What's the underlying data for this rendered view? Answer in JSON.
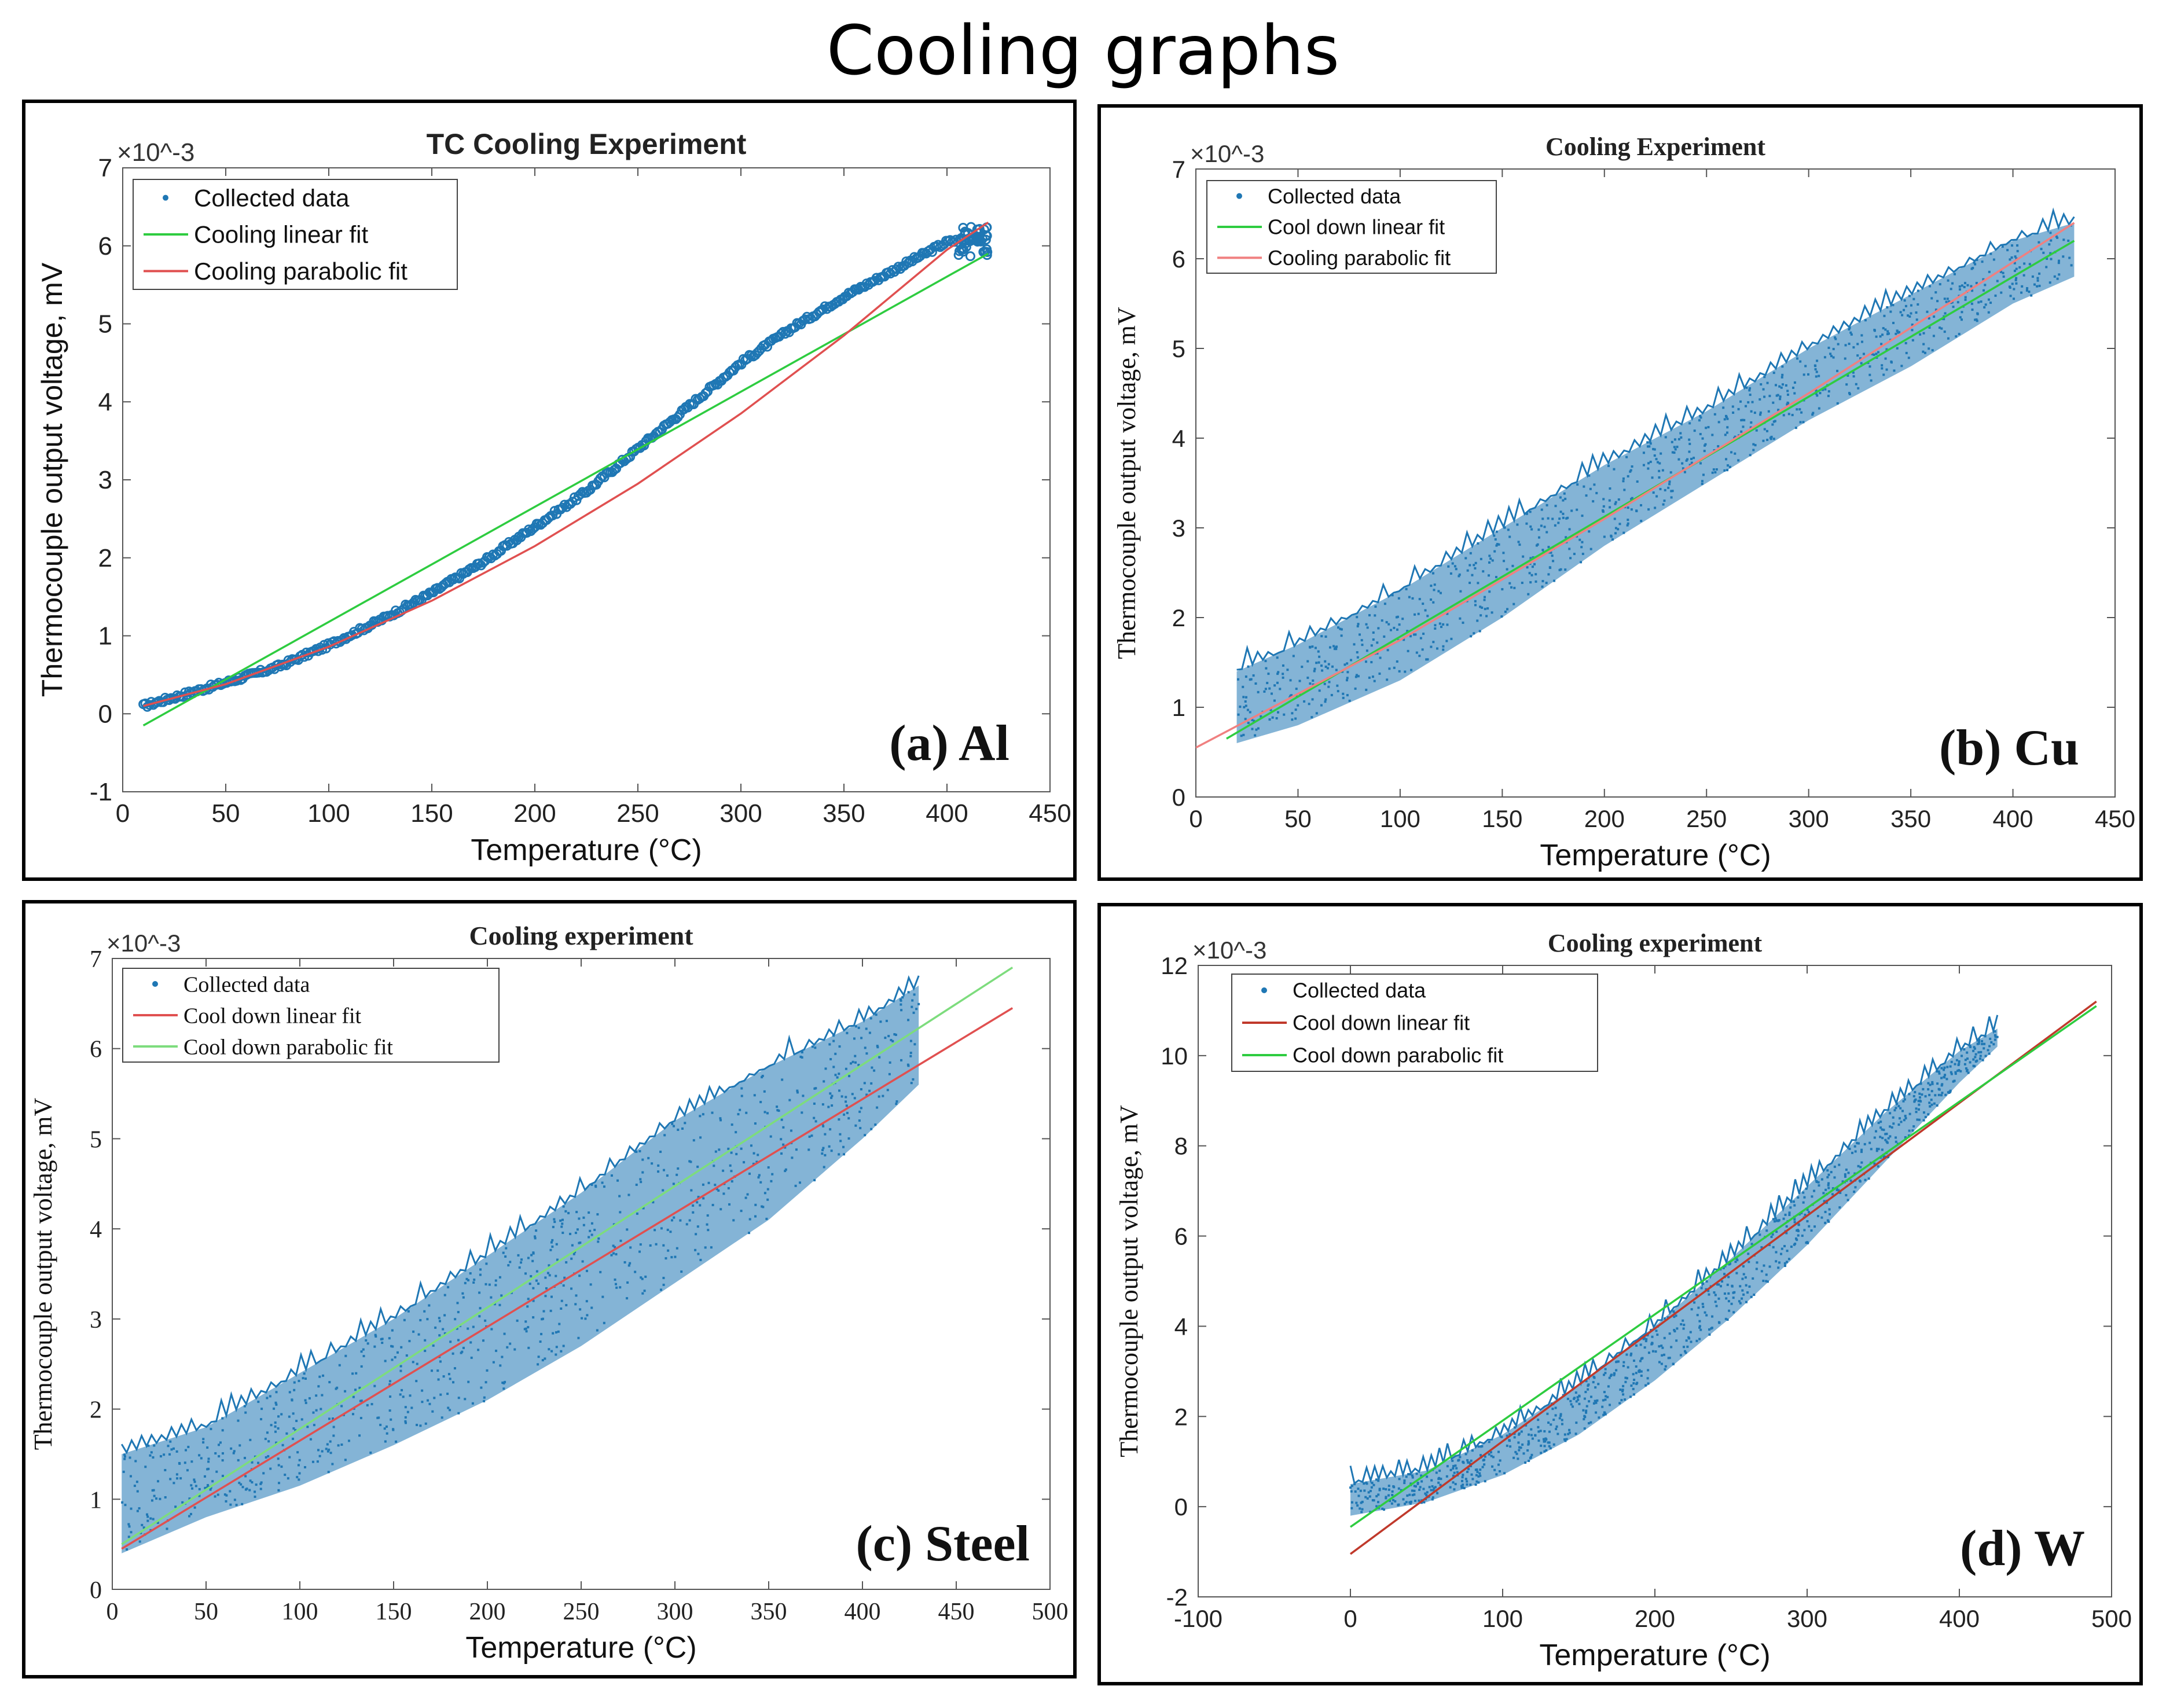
{
  "page_title": "Cooling graphs",
  "colors": {
    "data": "#1f77b4",
    "green": "#2ecc40",
    "red": "#e05050"
  },
  "chart_data": [
    {
      "id": "a",
      "type": "scatter",
      "title": "TC Cooling Experiment",
      "panel_label": "(a) Al",
      "xlabel": "Temperature (°C)",
      "ylabel": "Thermocouple output voltage, mV",
      "y_exponent": "×10^-3",
      "xlim": [
        0,
        450
      ],
      "ylim": [
        -1,
        7
      ],
      "xticks": [
        "0",
        "50",
        "100",
        "150",
        "200",
        "250",
        "300",
        "350",
        "400",
        "450"
      ],
      "yticks": [
        "-1",
        "0",
        "1",
        "2",
        "3",
        "4",
        "5",
        "6",
        "7"
      ],
      "legend": [
        "Collected data",
        "Cooling linear fit",
        "Cooling parabolic fit"
      ],
      "series": [
        {
          "name": "Collected data",
          "kind": "data",
          "color": "#1f77b4",
          "x": [
            10,
            30,
            50,
            75,
            100,
            125,
            150,
            175,
            200,
            225,
            250,
            275,
            300,
            325,
            350,
            375,
            400,
            415
          ],
          "y": [
            0.1,
            0.25,
            0.4,
            0.6,
            0.88,
            1.2,
            1.55,
            1.95,
            2.4,
            2.85,
            3.4,
            3.95,
            4.5,
            4.95,
            5.35,
            5.7,
            6.05,
            6.1
          ]
        },
        {
          "name": "Cooling linear fit",
          "kind": "line",
          "color": "#2ecc40",
          "x": [
            10,
            420
          ],
          "y": [
            -0.15,
            5.9
          ]
        },
        {
          "name": "Cooling parabolic fit",
          "kind": "line",
          "color": "#e05050",
          "x": [
            10,
            50,
            100,
            150,
            200,
            250,
            300,
            350,
            400,
            420
          ],
          "y": [
            0.1,
            0.38,
            0.86,
            1.45,
            2.15,
            2.95,
            3.85,
            4.85,
            5.95,
            6.3
          ]
        }
      ]
    },
    {
      "id": "b",
      "type": "scatter",
      "title": "Cooling Experiment",
      "panel_label": "(b) Cu",
      "xlabel": "Temperature (°C)",
      "ylabel": "Thermocouple output voltage, mV",
      "y_exponent": "×10^-3",
      "xlim": [
        0,
        450
      ],
      "ylim": [
        0,
        7
      ],
      "xticks": [
        "0",
        "50",
        "100",
        "150",
        "200",
        "250",
        "300",
        "350",
        "400",
        "450"
      ],
      "yticks": [
        "0",
        "1",
        "2",
        "3",
        "4",
        "5",
        "6",
        "7"
      ],
      "legend": [
        "Collected data",
        "Cool down linear fit",
        "Cooling parabolic fit"
      ],
      "series": [
        {
          "name": "Collected data",
          "kind": "band",
          "color": "#1f77b4",
          "x": [
            20,
            50,
            100,
            150,
            200,
            250,
            300,
            350,
            400,
            430
          ],
          "lo": [
            0.6,
            0.8,
            1.3,
            2.0,
            2.8,
            3.5,
            4.2,
            4.8,
            5.5,
            5.8
          ],
          "hi": [
            1.4,
            1.7,
            2.3,
            3.0,
            3.7,
            4.3,
            5.0,
            5.6,
            6.2,
            6.4
          ]
        },
        {
          "name": "Cool down linear fit",
          "kind": "line",
          "color": "#2ecc40",
          "x": [
            15,
            430
          ],
          "y": [
            0.65,
            6.2
          ]
        },
        {
          "name": "Cooling parabolic fit",
          "kind": "line",
          "color": "#f08080",
          "x": [
            0,
            100,
            200,
            300,
            430
          ],
          "y": [
            0.55,
            1.75,
            3.1,
            4.5,
            6.4
          ]
        }
      ]
    },
    {
      "id": "c",
      "type": "scatter",
      "title": "Cooling experiment",
      "panel_label": "(c) Steel",
      "xlabel": "Temperature (°C)",
      "ylabel": "Thermocouple output voltage, mV",
      "y_exponent": "×10^-3",
      "xlim": [
        0,
        500
      ],
      "ylim": [
        0,
        7
      ],
      "xticks": [
        "0",
        "50",
        "100",
        "150",
        "200",
        "250",
        "300",
        "350",
        "400",
        "450",
        "500"
      ],
      "yticks": [
        "0",
        "1",
        "2",
        "3",
        "4",
        "5",
        "6",
        "7"
      ],
      "legend": [
        "Collected data",
        "Cool down linear fit",
        "Cool down parabolic fit"
      ],
      "series": [
        {
          "name": "Collected data",
          "kind": "band",
          "color": "#1f77b4",
          "x": [
            5,
            50,
            100,
            150,
            200,
            250,
            300,
            350,
            400,
            430
          ],
          "lo": [
            0.4,
            0.8,
            1.15,
            1.6,
            2.1,
            2.7,
            3.4,
            4.1,
            5.0,
            5.6
          ],
          "hi": [
            1.5,
            1.8,
            2.4,
            3.0,
            3.7,
            4.4,
            5.2,
            5.8,
            6.3,
            6.7
          ]
        },
        {
          "name": "Cool down linear fit",
          "kind": "line",
          "color": "#e05050",
          "x": [
            5,
            480
          ],
          "y": [
            0.45,
            6.45
          ]
        },
        {
          "name": "Cool down parabolic fit",
          "kind": "line",
          "color": "#7ddc7d",
          "x": [
            5,
            480
          ],
          "y": [
            0.5,
            6.9
          ]
        }
      ]
    },
    {
      "id": "d",
      "type": "scatter",
      "title": "Cooling experiment",
      "panel_label": "(d) W",
      "xlabel": "Temperature (°C)",
      "ylabel": "Thermocouple output voltage, mV",
      "y_exponent": "×10^-3",
      "xlim": [
        -100,
        500
      ],
      "ylim": [
        -2,
        12
      ],
      "xticks": [
        "-100",
        "0",
        "100",
        "200",
        "300",
        "400",
        "500"
      ],
      "yticks": [
        "-2",
        "0",
        "2",
        "4",
        "6",
        "8",
        "10",
        "12"
      ],
      "legend": [
        "Collected data",
        "Cool down linear fit",
        "Cool down parabolic fit"
      ],
      "series": [
        {
          "name": "Collected data",
          "kind": "band",
          "color": "#1f77b4",
          "x": [
            0,
            50,
            100,
            150,
            200,
            250,
            300,
            350,
            400,
            425
          ],
          "lo": [
            -0.2,
            0.1,
            0.7,
            1.6,
            2.8,
            4.2,
            5.8,
            7.6,
            9.4,
            10.2
          ],
          "hi": [
            0.5,
            0.8,
            1.6,
            2.7,
            4.0,
            5.5,
            7.1,
            8.7,
            10.1,
            10.6
          ]
        },
        {
          "name": "Cool down linear fit",
          "kind": "line",
          "color": "#c0392b",
          "x": [
            0,
            490
          ],
          "y": [
            -1.05,
            11.2
          ]
        },
        {
          "name": "Cool down parabolic fit",
          "kind": "line",
          "color": "#2ecc40",
          "x": [
            0,
            490
          ],
          "y": [
            -0.45,
            11.1
          ]
        }
      ]
    }
  ]
}
